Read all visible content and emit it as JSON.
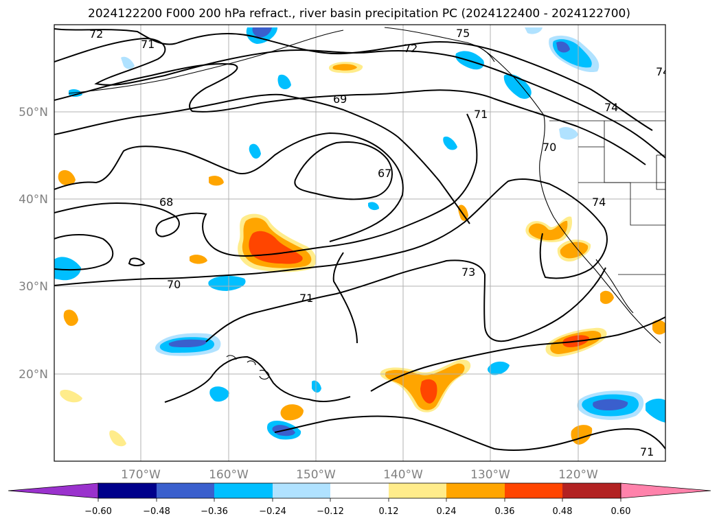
{
  "title": "2024122200 F000 200 hPa refract., river basin precipitation PC (2024122400 - 2024122700)",
  "map": {
    "lat_labels": [
      "50°N",
      "40°N",
      "30°N",
      "20°N"
    ],
    "lon_labels": [
      "170°W",
      "160°W",
      "150°W",
      "140°W",
      "130°W",
      "120°W"
    ],
    "contour_labels": [
      "72",
      "71",
      "75",
      "72",
      "74",
      "69",
      "71",
      "74",
      "70",
      "67",
      "68",
      "74",
      "73",
      "70",
      "71",
      "71"
    ]
  },
  "colorbar": {
    "labels": [
      "−0.60",
      "−0.48",
      "−0.36",
      "−0.24",
      "−0.12",
      "0.12",
      "0.24",
      "0.36",
      "0.48",
      "0.60"
    ],
    "colors": [
      "#9a32cd",
      "#00008b",
      "#3a5fcd",
      "#00bfff",
      "#b0e2ff",
      "#ffffff",
      "#ffec8b",
      "#ffa500",
      "#ff4500",
      "#b22222",
      "#ff82ab"
    ]
  },
  "colors": {
    "contour": "#000000",
    "grid": "#b0b0b0",
    "coast": "#000000"
  }
}
